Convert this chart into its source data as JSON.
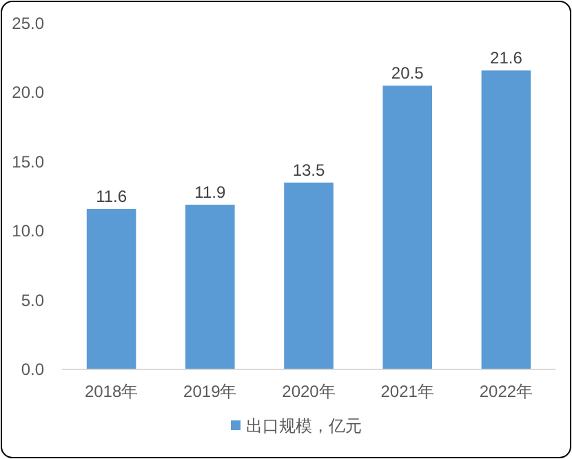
{
  "chart_data": {
    "type": "bar",
    "categories": [
      "2018年",
      "2019年",
      "2020年",
      "2021年",
      "2022年"
    ],
    "series": [
      {
        "name": "出口规模，亿元",
        "color": "#5b9bd5",
        "values": [
          11.6,
          11.9,
          13.5,
          20.5,
          21.6
        ]
      }
    ],
    "ylim": [
      0,
      25
    ],
    "yticks": [
      {
        "value": 0,
        "label": "0.0"
      },
      {
        "value": 5,
        "label": "5.0"
      },
      {
        "value": 10,
        "label": "10.0"
      },
      {
        "value": 15,
        "label": "15.0"
      },
      {
        "value": 20,
        "label": "20.0"
      },
      {
        "value": 25,
        "label": "25.0"
      }
    ],
    "data_labels": true,
    "legend": "bottom"
  }
}
